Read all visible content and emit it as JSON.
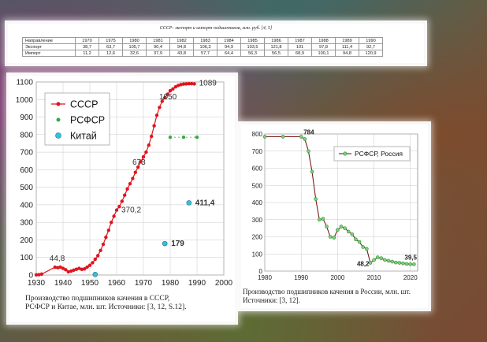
{
  "table": {
    "title": "СССР: экспорт и импорт подшипников, млн. руб. [4, 5]",
    "header_label": "Направление",
    "years": [
      "1970",
      "1975",
      "1980",
      "1981",
      "1982",
      "1983",
      "1984",
      "1985",
      "1986",
      "1987",
      "1988",
      "1989",
      "1990"
    ],
    "rows": [
      {
        "label": "Экспорт",
        "values": [
          "38,7",
          "63,7",
          "105,7",
          "90,4",
          "94,8",
          "106,3",
          "94,9",
          "103,5",
          "121,8",
          "101",
          "97,8",
          "111,4",
          "92,7"
        ]
      },
      {
        "label": "Импорт",
        "values": [
          "11,2",
          "12,6",
          "32,6",
          "37,9",
          "43,8",
          "57,7",
          "64,4",
          "56,3",
          "56,5",
          "68,9",
          "100,1",
          "94,8",
          "120,9"
        ]
      }
    ]
  },
  "captions": {
    "left_line1": "Производство подшипников качения в СССР,",
    "left_line2": "РСФСР и Китае, млн. шт. Источники: [3, 12, S.12].",
    "right_line1": "Производство подшипников качения в России, млн. шт.",
    "right_line2": "Источники: [3, 12]."
  },
  "chart_data": [
    {
      "type": "scatter",
      "xlim": [
        1930,
        2000
      ],
      "ylim": [
        0,
        1100
      ],
      "x_ticks": [
        1930,
        1940,
        1950,
        1960,
        1970,
        1980,
        1990,
        2000
      ],
      "y_ticks": [
        0,
        100,
        200,
        300,
        400,
        500,
        600,
        700,
        800,
        900,
        1000,
        1100
      ],
      "grid": true,
      "legend_position": "top-left",
      "series": [
        {
          "name": "СССР",
          "color": "#e0141e",
          "connected": true,
          "points": [
            [
              1930,
              1
            ],
            [
              1931,
              2
            ],
            [
              1932,
              5
            ],
            [
              1937,
              44.8
            ],
            [
              1938,
              42
            ],
            [
              1939,
              45
            ],
            [
              1940,
              38
            ],
            [
              1941,
              30
            ],
            [
              1942,
              18
            ],
            [
              1943,
              22
            ],
            [
              1944,
              28
            ],
            [
              1945,
              33
            ],
            [
              1946,
              38
            ],
            [
              1947,
              32
            ],
            [
              1948,
              35
            ],
            [
              1949,
              45
            ],
            [
              1950,
              55
            ],
            [
              1951,
              70
            ],
            [
              1952,
              90
            ],
            [
              1953,
              110
            ],
            [
              1954,
              140
            ],
            [
              1955,
              175
            ],
            [
              1956,
              215
            ],
            [
              1957,
              255
            ],
            [
              1958,
              300
            ],
            [
              1959,
              335
            ],
            [
              1960,
              370.2
            ],
            [
              1961,
              390
            ],
            [
              1962,
              420
            ],
            [
              1963,
              455
            ],
            [
              1964,
              490
            ],
            [
              1965,
              520
            ],
            [
              1966,
              550
            ],
            [
              1967,
              585
            ],
            [
              1968,
              615
            ],
            [
              1969,
              645
            ],
            [
              1970,
              673
            ],
            [
              1971,
              700
            ],
            [
              1972,
              740
            ],
            [
              1973,
              790
            ],
            [
              1974,
              850
            ],
            [
              1975,
              910
            ],
            [
              1976,
              955
            ],
            [
              1977,
              990
            ],
            [
              1978,
              1010
            ],
            [
              1979,
              1030
            ],
            [
              1980,
              1050
            ],
            [
              1981,
              1060
            ],
            [
              1982,
              1072
            ],
            [
              1983,
              1080
            ],
            [
              1984,
              1085
            ],
            [
              1985,
              1088
            ],
            [
              1986,
              1089
            ],
            [
              1987,
              1090
            ],
            [
              1988,
              1090
            ],
            [
              1989,
              1089
            ]
          ]
        },
        {
          "name": "РСФСР",
          "color": "#3aa84a",
          "connected": false,
          "points": [
            [
              1980,
              785
            ],
            [
              1985,
              785
            ],
            [
              1990,
              785
            ]
          ]
        },
        {
          "name": "Китай",
          "color": "#34c2d8",
          "connected": false,
          "points": [
            [
              1952,
              3
            ],
            [
              1978,
              179
            ],
            [
              1987,
              411.4
            ]
          ]
        }
      ],
      "annotations": [
        {
          "text": "44,8",
          "x": 1937,
          "y": 44.8
        },
        {
          "text": "370,2",
          "x": 1960,
          "y": 370.2
        },
        {
          "text": "673",
          "x": 1970,
          "y": 673
        },
        {
          "text": "1050",
          "x": 1980,
          "y": 1050
        },
        {
          "text": "1089",
          "x": 1989,
          "y": 1089
        },
        {
          "text": "179",
          "x": 1978,
          "y": 179
        },
        {
          "text": "411,4",
          "x": 1987,
          "y": 411.4
        }
      ]
    },
    {
      "type": "line",
      "xlim": [
        1980,
        2022
      ],
      "ylim": [
        0,
        800
      ],
      "x_ticks": [
        1980,
        1990,
        2000,
        2010,
        2020
      ],
      "y_ticks": [
        0,
        100,
        200,
        300,
        400,
        500,
        600,
        700,
        800
      ],
      "grid": true,
      "legend_position": "top-right",
      "series": [
        {
          "name": "РСФСР, Россия",
          "color": "#2e8b2e",
          "line_color": "#7a1a1a",
          "points": [
            [
              1980,
              784
            ],
            [
              1985,
              784
            ],
            [
              1990,
              784
            ],
            [
              1991,
              770
            ],
            [
              1992,
              700
            ],
            [
              1993,
              580
            ],
            [
              1994,
              420
            ],
            [
              1995,
              300
            ],
            [
              1996,
              305
            ],
            [
              1997,
              260
            ],
            [
              1998,
              200
            ],
            [
              1999,
              195
            ],
            [
              2000,
              240
            ],
            [
              2001,
              260
            ],
            [
              2002,
              250
            ],
            [
              2003,
              230
            ],
            [
              2004,
              215
            ],
            [
              2005,
              185
            ],
            [
              2006,
              170
            ],
            [
              2007,
              140
            ],
            [
              2008,
              130
            ],
            [
              2009,
              48.2
            ],
            [
              2010,
              65
            ],
            [
              2011,
              80
            ],
            [
              2012,
              75
            ],
            [
              2013,
              65
            ],
            [
              2014,
              60
            ],
            [
              2015,
              55
            ],
            [
              2016,
              50
            ],
            [
              2017,
              48
            ],
            [
              2018,
              45
            ],
            [
              2019,
              42
            ],
            [
              2020,
              40
            ],
            [
              2021,
              39.5
            ]
          ]
        }
      ],
      "annotations": [
        {
          "text": "784",
          "x": 1990,
          "y": 784
        },
        {
          "text": "48,2",
          "x": 2009,
          "y": 48.2
        },
        {
          "text": "39,5",
          "x": 2021,
          "y": 39.5
        }
      ]
    }
  ]
}
